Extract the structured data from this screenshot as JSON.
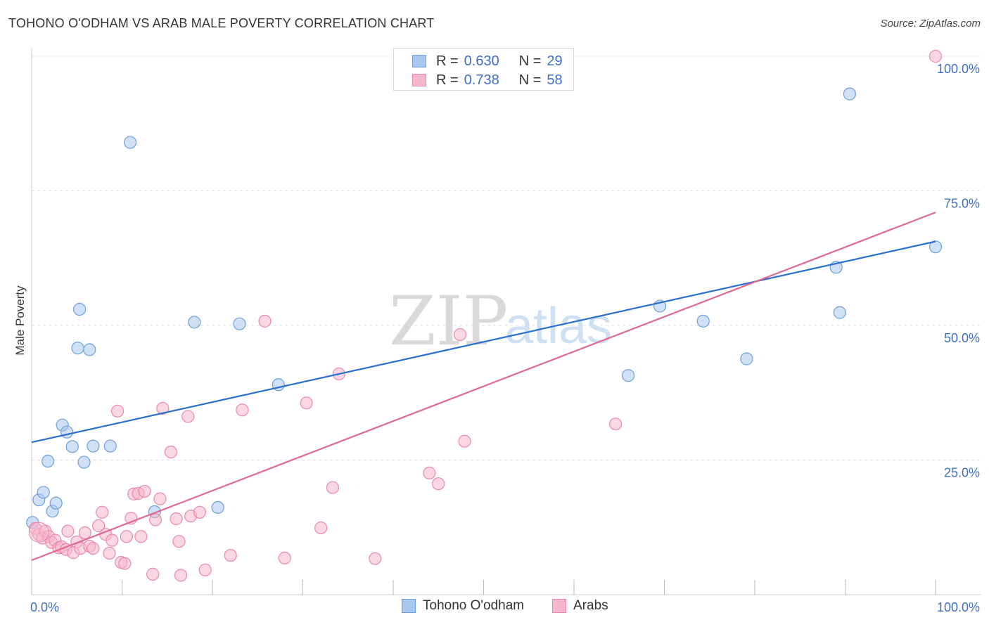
{
  "title": "TOHONO O'ODHAM VS ARAB MALE POVERTY CORRELATION CHART",
  "source": "Source: ZipAtlas.com",
  "watermark": {
    "zip": "ZIP",
    "atlas": "atlas"
  },
  "legend": {
    "series1": {
      "r_label": "R =",
      "r_value": "0.630",
      "n_label": "N =",
      "n_value": "29"
    },
    "series2": {
      "r_label": "R =",
      "r_value": "0.738",
      "n_label": "N =",
      "n_value": "58"
    }
  },
  "bottom_legend": {
    "series1": "Tohono O'odham",
    "series2": "Arabs"
  },
  "colors": {
    "series1_fill": "#a9c8f0",
    "series1_stroke": "#6f9fd8",
    "series1_line": "#2a6fce",
    "series2_fill": "#f6b6cb",
    "series2_stroke": "#e88aa8",
    "series2_line": "#e06894",
    "tick": "#3f6fc4",
    "grid": "#dddddd"
  },
  "chart_data": {
    "type": "scatter",
    "title": "TOHONO O'ODHAM VS ARAB MALE POVERTY CORRELATION CHART",
    "xlabel": "",
    "ylabel": "Male Poverty",
    "xlim": [
      0,
      100
    ],
    "ylim": [
      0,
      100
    ],
    "x_tick_labels": [
      "0.0%",
      "100.0%"
    ],
    "y_ticks": [
      25,
      50,
      75,
      100
    ],
    "y_tick_labels": [
      "25.0%",
      "50.0%",
      "75.0%",
      "100.0%"
    ],
    "grid": true,
    "legend_position": "top-center",
    "series": [
      {
        "name": "Tohono O'odham",
        "r": 0.63,
        "n": 29,
        "trend": [
          [
            0,
            28.3
          ],
          [
            100,
            65.6
          ]
        ],
        "points": [
          [
            0.1,
            13.4
          ],
          [
            0.8,
            17.6
          ],
          [
            1.3,
            19.0
          ],
          [
            1.8,
            24.8
          ],
          [
            2.3,
            15.5
          ],
          [
            2.7,
            17.0
          ],
          [
            3.4,
            31.5
          ],
          [
            3.9,
            30.2
          ],
          [
            4.5,
            27.5
          ],
          [
            5.1,
            45.8
          ],
          [
            5.3,
            53.0
          ],
          [
            5.8,
            24.6
          ],
          [
            6.4,
            45.5
          ],
          [
            6.8,
            27.6
          ],
          [
            8.7,
            27.6
          ],
          [
            10.9,
            84.0
          ],
          [
            13.6,
            15.4
          ],
          [
            18.0,
            50.6
          ],
          [
            20.6,
            16.2
          ],
          [
            23.0,
            50.3
          ],
          [
            27.3,
            39.0
          ],
          [
            66.0,
            40.7
          ],
          [
            69.5,
            53.6
          ],
          [
            74.3,
            50.8
          ],
          [
            79.1,
            43.8
          ],
          [
            89.0,
            60.8
          ],
          [
            89.4,
            52.4
          ],
          [
            90.5,
            93.0
          ],
          [
            100.0,
            64.6
          ]
        ]
      },
      {
        "name": "Arabs",
        "r": 0.738,
        "n": 58,
        "trend": [
          [
            0,
            6.4
          ],
          [
            100,
            71.0
          ]
        ],
        "points": [
          [
            0.4,
            12.3
          ],
          [
            0.8,
            11.2
          ],
          [
            1.2,
            10.5
          ],
          [
            1.5,
            11.8
          ],
          [
            1.9,
            10.8
          ],
          [
            2.2,
            9.7
          ],
          [
            2.6,
            10.1
          ],
          [
            3.0,
            8.7
          ],
          [
            3.3,
            8.9
          ],
          [
            3.8,
            8.4
          ],
          [
            4.0,
            11.8
          ],
          [
            4.6,
            7.8
          ],
          [
            5.0,
            9.8
          ],
          [
            5.4,
            8.6
          ],
          [
            5.9,
            11.5
          ],
          [
            6.4,
            9.0
          ],
          [
            6.8,
            8.6
          ],
          [
            7.4,
            12.8
          ],
          [
            7.8,
            15.3
          ],
          [
            8.2,
            11.2
          ],
          [
            8.6,
            7.7
          ],
          [
            8.9,
            10.1
          ],
          [
            9.5,
            34.1
          ],
          [
            9.9,
            6.0
          ],
          [
            10.3,
            5.8
          ],
          [
            10.5,
            10.8
          ],
          [
            11.0,
            14.2
          ],
          [
            11.3,
            18.7
          ],
          [
            11.8,
            18.8
          ],
          [
            12.1,
            10.8
          ],
          [
            12.5,
            19.2
          ],
          [
            13.4,
            3.8
          ],
          [
            13.7,
            13.9
          ],
          [
            14.2,
            17.8
          ],
          [
            14.5,
            34.6
          ],
          [
            15.4,
            26.5
          ],
          [
            16.0,
            14.1
          ],
          [
            16.3,
            9.9
          ],
          [
            16.5,
            3.6
          ],
          [
            17.3,
            33.1
          ],
          [
            17.6,
            14.6
          ],
          [
            18.6,
            15.3
          ],
          [
            19.2,
            4.6
          ],
          [
            22.0,
            7.3
          ],
          [
            23.3,
            34.3
          ],
          [
            25.8,
            50.8
          ],
          [
            28.0,
            6.8
          ],
          [
            30.4,
            35.6
          ],
          [
            32.0,
            12.4
          ],
          [
            33.3,
            19.9
          ],
          [
            34.0,
            41.0
          ],
          [
            38.0,
            6.7
          ],
          [
            44.0,
            22.6
          ],
          [
            45.0,
            20.6
          ],
          [
            47.4,
            48.3
          ],
          [
            47.9,
            28.5
          ],
          [
            64.6,
            31.7
          ],
          [
            100.0,
            100.0
          ]
        ]
      }
    ]
  }
}
